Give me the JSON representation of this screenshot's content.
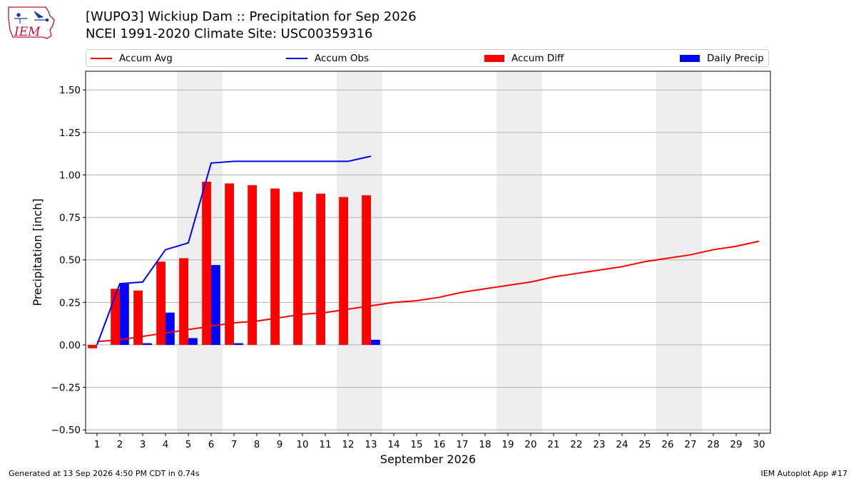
{
  "title_line1": "[WUPO3] Wickiup Dam :: Precipitation for Sep 2026",
  "title_line2": "NCEI 1991-2020 Climate Site: USC00359316",
  "logo_text": "IEM",
  "footer_left": "Generated at 13 Sep 2026 4:50 PM CDT in 0.74s",
  "footer_right": "IEM Autoplot App #17",
  "colors": {
    "avg": "#ff0000",
    "obs": "#0000ff",
    "diff": "#ff0000",
    "daily": "#0000ff",
    "weekend": "#eeeeee",
    "grid": "#b0b0b0"
  },
  "legend": {
    "avg": "Accum Avg",
    "obs": "Accum Obs",
    "diff": "Accum Diff",
    "daily": "Daily Precip"
  },
  "chart_data": {
    "type": "bar",
    "xlabel": "September 2026",
    "ylabel": "Precipitation [inch]",
    "xlim": [
      0.5,
      30.5
    ],
    "ylim": [
      -0.52,
      1.61
    ],
    "yticks": [
      "−0.50",
      "−0.25",
      "0.00",
      "0.25",
      "0.50",
      "0.75",
      "1.00",
      "1.25",
      "1.50"
    ],
    "ytick_values": [
      -0.5,
      -0.25,
      0,
      0.25,
      0.5,
      0.75,
      1.0,
      1.25,
      1.5
    ],
    "days": [
      "1",
      "2",
      "3",
      "4",
      "5",
      "6",
      "7",
      "8",
      "9",
      "10",
      "11",
      "12",
      "13",
      "14",
      "15",
      "16",
      "17",
      "18",
      "19",
      "20",
      "21",
      "22",
      "23",
      "24",
      "25",
      "26",
      "27",
      "28",
      "29",
      "30"
    ],
    "weekend_spans": [
      [
        4.5,
        6.5
      ],
      [
        11.5,
        13.5
      ],
      [
        18.5,
        20.5
      ],
      [
        25.5,
        27.5
      ]
    ],
    "grid": true,
    "legend_position": "top",
    "series": [
      {
        "name": "Accum Avg",
        "type": "line",
        "x": [
          1,
          2,
          3,
          4,
          5,
          6,
          7,
          8,
          9,
          10,
          11,
          12,
          13,
          14,
          15,
          16,
          17,
          18,
          19,
          20,
          21,
          22,
          23,
          24,
          25,
          26,
          27,
          28,
          29,
          30
        ],
        "values": [
          0.02,
          0.03,
          0.05,
          0.07,
          0.09,
          0.11,
          0.13,
          0.14,
          0.16,
          0.18,
          0.19,
          0.21,
          0.23,
          0.25,
          0.26,
          0.28,
          0.31,
          0.33,
          0.35,
          0.37,
          0.4,
          0.42,
          0.44,
          0.46,
          0.49,
          0.51,
          0.53,
          0.56,
          0.58,
          0.61
        ]
      },
      {
        "name": "Accum Obs",
        "type": "line",
        "x": [
          1,
          2,
          3,
          4,
          5,
          6,
          7,
          8,
          9,
          10,
          11,
          12,
          13
        ],
        "values": [
          0.0,
          0.36,
          0.37,
          0.56,
          0.6,
          1.07,
          1.08,
          1.08,
          1.08,
          1.08,
          1.08,
          1.08,
          1.11
        ]
      },
      {
        "name": "Accum Diff",
        "type": "bar",
        "x": [
          1,
          2,
          3,
          4,
          5,
          6,
          7,
          8,
          9,
          10,
          11,
          12,
          13
        ],
        "values": [
          -0.02,
          0.33,
          0.32,
          0.49,
          0.51,
          0.96,
          0.95,
          0.94,
          0.92,
          0.9,
          0.89,
          0.87,
          0.88
        ]
      },
      {
        "name": "Daily Precip",
        "type": "bar",
        "x": [
          1,
          2,
          3,
          4,
          5,
          6,
          7,
          8,
          9,
          10,
          11,
          12,
          13
        ],
        "values": [
          0.0,
          0.36,
          0.01,
          0.19,
          0.04,
          0.47,
          0.01,
          0.0,
          0.0,
          0.0,
          0.0,
          0.0,
          0.03
        ]
      }
    ]
  }
}
